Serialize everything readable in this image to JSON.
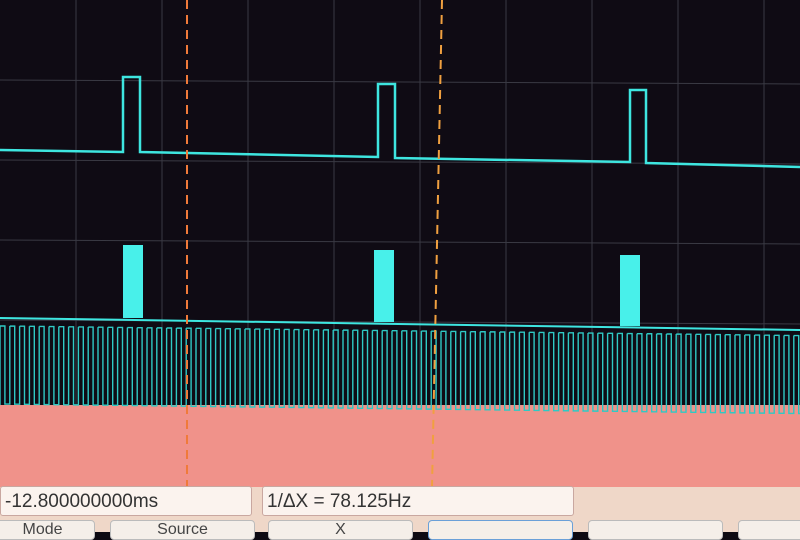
{
  "measurements": {
    "cursor_time": "-12.800000000ms",
    "inverse_delta_x": "1/ΔX = 78.125Hz"
  },
  "buttons": [
    {
      "label": "Mode"
    },
    {
      "label": "Source"
    },
    {
      "label": "X"
    },
    {
      "label": ""
    },
    {
      "label": ""
    },
    {
      "label": ""
    }
  ],
  "colors": {
    "trace": "#3ee6e0",
    "cursor": "#f07a3a",
    "background": "#0d0a12",
    "panel": "#f29a90"
  }
}
